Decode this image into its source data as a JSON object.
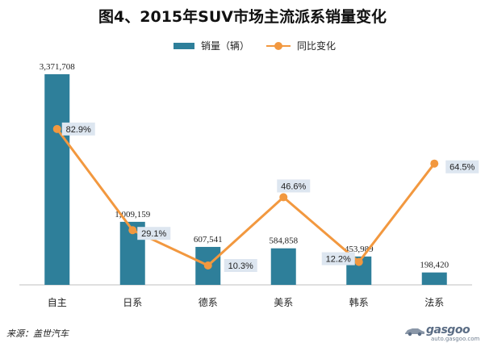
{
  "title": "图4、2015年SUV市场主流派系销量变化",
  "source": "来源：盖世汽车",
  "watermark": {
    "word": "gasgoo",
    "url": "auto.gasgoo.com"
  },
  "colors": {
    "bar": "#2e7f9a",
    "line": "#f2983f",
    "label_bg": "#dde6f0"
  },
  "chart_data": {
    "type": "bar",
    "categories": [
      "自主",
      "日系",
      "德系",
      "美系",
      "韩系",
      "法系"
    ],
    "series": [
      {
        "name": "销量（辆）",
        "type": "bar",
        "axis": "left",
        "values": [
          3371708,
          1009159,
          607541,
          584858,
          453989,
          198420
        ],
        "labels": [
          "3,371,708",
          "1,009,159",
          "607,541",
          "584,858",
          "453,989",
          "198,420"
        ]
      },
      {
        "name": "同比变化",
        "type": "line",
        "axis": "right",
        "values": [
          82.9,
          29.1,
          10.3,
          46.6,
          12.2,
          64.5
        ],
        "labels": [
          "82.9%",
          "29.1%",
          "10.3%",
          "46.6%",
          "12.2%",
          "64.5%"
        ]
      }
    ],
    "ylim_left": [
      0,
      3371708
    ],
    "ylim_right": [
      0,
      100
    ],
    "axes_visible": false,
    "grid": false,
    "legend_position": "top"
  }
}
